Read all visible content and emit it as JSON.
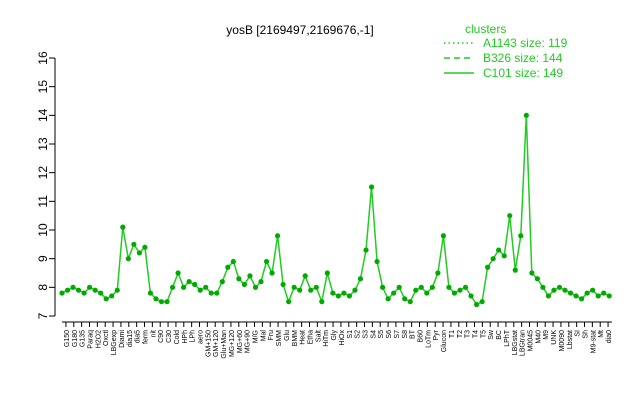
{
  "chart_data": {
    "type": "line",
    "title": "yosB [2169497,2169676,-1]",
    "xlabel": "",
    "ylabel": "",
    "ylim": [
      7,
      16
    ],
    "yticks": [
      7,
      8,
      9,
      10,
      11,
      12,
      13,
      14,
      15,
      16
    ],
    "grid": false,
    "legend": {
      "title": "clusters",
      "position": "top-right",
      "color": "#22cc22",
      "entries": [
        {
          "label": "A1143 size: 119",
          "style": "dotted"
        },
        {
          "label": "B326 size: 144",
          "style": "dashed"
        },
        {
          "label": "C101 size: 149",
          "style": "solid"
        }
      ]
    },
    "x_tick_labels": [
      "G150",
      "G180",
      "G135",
      "Paraq",
      "H2O2",
      "Oxctl",
      "LBGexp",
      "Diami",
      "dia15",
      "dia5",
      "ferm",
      "nit",
      "C90",
      "C30",
      "Cold",
      "HPh",
      "LPh",
      "aero",
      "GM+150",
      "GM+120",
      "Glu+Man",
      "MG+120",
      "MG+60",
      "MG+90",
      "M/G",
      "Mal",
      "Fru",
      "SMM",
      "Glu",
      "BMM",
      "Heat",
      "Etha",
      "Salt",
      "HiTm",
      "Gly",
      "HiOx",
      "S1",
      "S2",
      "S3",
      "S4",
      "S5",
      "S6",
      "S7",
      "S8",
      "BT",
      "B60",
      "LoTm",
      "Pyr",
      "Glucon",
      "T1",
      "T2",
      "T3",
      "T4",
      "T5",
      "Sw",
      "BC",
      "LPhT",
      "LBGstat",
      "LBGtran",
      "M0045",
      "M40",
      "M9",
      "UNK",
      "M0090",
      "Lbstat",
      "SI",
      "Sh",
      "M9-stat",
      "Mt",
      "dia0"
    ],
    "x_range": [
      1,
      200
    ],
    "series": [
      {
        "color": "#00aa00",
        "x": [
          1,
          3,
          5,
          7,
          9,
          11,
          13,
          15,
          17,
          19,
          21,
          23,
          25,
          27,
          29,
          31,
          33,
          35,
          37,
          39,
          41,
          43,
          45,
          47,
          49,
          51,
          53,
          55,
          57,
          59,
          61,
          63,
          65,
          67,
          69,
          71,
          73,
          75,
          77,
          79,
          81,
          83,
          85,
          87,
          89,
          91,
          93,
          95,
          97,
          99,
          101,
          103,
          105,
          107,
          109,
          111,
          113,
          115,
          117,
          119,
          121,
          123,
          125,
          127,
          129,
          131,
          133,
          135,
          137,
          139,
          141,
          143,
          145,
          147,
          149,
          151,
          153,
          155,
          157,
          159,
          161,
          163,
          165,
          167,
          169,
          171,
          173,
          175,
          177,
          179,
          181,
          183,
          185,
          187,
          189,
          191,
          193,
          195,
          197,
          199
        ],
        "values": [
          7.8,
          7.9,
          8.0,
          7.9,
          7.8,
          8.0,
          7.9,
          7.8,
          7.6,
          7.7,
          7.9,
          10.1,
          9.0,
          9.5,
          9.2,
          9.4,
          7.8,
          7.6,
          7.5,
          7.5,
          8.0,
          8.5,
          8.0,
          8.2,
          8.1,
          7.9,
          8.0,
          7.8,
          7.8,
          8.2,
          8.7,
          8.9,
          8.3,
          8.1,
          8.4,
          8.0,
          8.2,
          8.9,
          8.5,
          9.8,
          8.1,
          7.5,
          8.0,
          7.9,
          8.4,
          7.9,
          8.0,
          7.5,
          8.5,
          7.8,
          7.7,
          7.8,
          7.7,
          7.9,
          8.3,
          9.3,
          11.5,
          8.9,
          8.0,
          7.6,
          7.8,
          8.0,
          7.6,
          7.5,
          7.9,
          8.0,
          7.8,
          8.0,
          8.5,
          9.8,
          8.0,
          7.8,
          7.9,
          8.0,
          7.7,
          7.4,
          7.5,
          8.7,
          9.0,
          9.3,
          9.1,
          10.5,
          8.6,
          9.8,
          14.0,
          8.5,
          8.3,
          8.0,
          7.7,
          7.9,
          8.0,
          7.9,
          7.8,
          7.7,
          7.6,
          7.8,
          7.9,
          7.7,
          7.8,
          7.7
        ]
      }
    ]
  }
}
